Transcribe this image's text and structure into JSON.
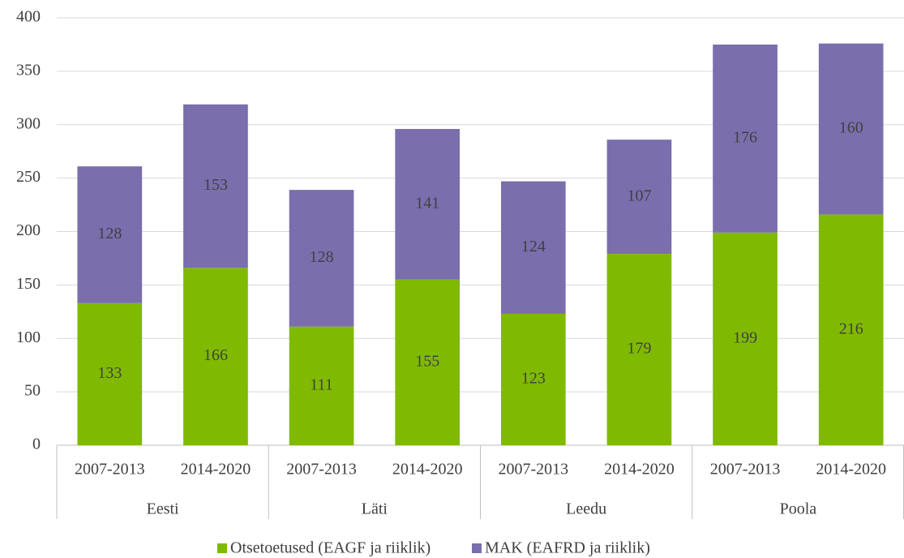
{
  "chart_data": {
    "type": "stacked_bar",
    "categories": [
      "2007-2013",
      "2014-2020",
      "2007-2013",
      "2014-2020",
      "2007-2013",
      "2014-2020",
      "2007-2013",
      "2014-2020"
    ],
    "groups": [
      "Eesti",
      "Läti",
      "Leedu",
      "Poola"
    ],
    "series": [
      {
        "name": "Otsetoetused (EAGF ja riiklik)",
        "color": "#7fba00",
        "values": [
          133,
          166,
          111,
          155,
          123,
          179,
          199,
          216
        ]
      },
      {
        "name": "MAK (EAFRD ja riiklik)",
        "color": "#7a6ead",
        "values": [
          128,
          153,
          128,
          141,
          124,
          107,
          176,
          160
        ]
      }
    ],
    "ylim": [
      0,
      400
    ],
    "yticks": [
      0,
      50,
      100,
      150,
      200,
      250,
      300,
      350,
      400
    ],
    "grid": true,
    "legend": "bottom"
  }
}
